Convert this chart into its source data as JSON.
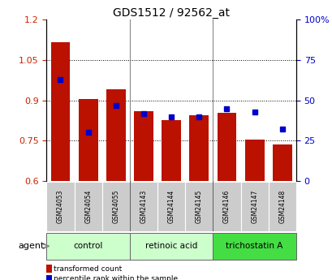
{
  "title": "GDS1512 / 92562_at",
  "samples": [
    "GSM24053",
    "GSM24054",
    "GSM24055",
    "GSM24143",
    "GSM24144",
    "GSM24145",
    "GSM24146",
    "GSM24147",
    "GSM24148"
  ],
  "transformed_counts": [
    1.115,
    0.905,
    0.94,
    0.86,
    0.825,
    0.845,
    0.855,
    0.755,
    0.735
  ],
  "percentile_ranks": [
    63,
    30,
    47,
    42,
    40,
    40,
    45,
    43,
    32
  ],
  "ylim_left": [
    0.6,
    1.2
  ],
  "ylim_right": [
    0,
    100
  ],
  "yticks_left": [
    0.6,
    0.75,
    0.9,
    1.05,
    1.2
  ],
  "ytick_labels_left": [
    "0.6",
    "0.75",
    "0.9",
    "1.05",
    "1.2"
  ],
  "yticks_right": [
    0,
    25,
    50,
    75,
    100
  ],
  "ytick_labels_right": [
    "0",
    "25",
    "50",
    "75",
    "100%"
  ],
  "bar_color": "#bb1100",
  "dot_color": "#0000cc",
  "bar_width": 0.7,
  "agent_label": "agent",
  "legend_items": [
    {
      "label": "transformed count",
      "color": "#bb1100"
    },
    {
      "label": "percentile rank within the sample",
      "color": "#0000cc"
    }
  ],
  "grid_color": "black",
  "tick_label_color_left": "#cc2200",
  "tick_label_color_right": "#0000cc",
  "sample_box_color": "#cccccc",
  "group_defs": [
    {
      "start": 0,
      "end": 2,
      "label": "control",
      "color": "#ccffcc"
    },
    {
      "start": 3,
      "end": 5,
      "label": "retinoic acid",
      "color": "#ccffcc"
    },
    {
      "start": 6,
      "end": 8,
      "label": "trichostatin A",
      "color": "#44dd44"
    }
  ],
  "group_sep": [
    2.5,
    5.5
  ]
}
